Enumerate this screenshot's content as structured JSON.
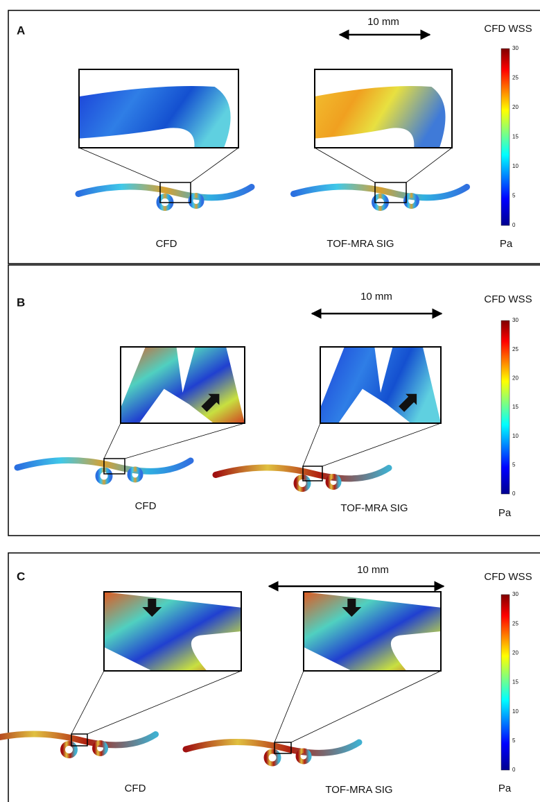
{
  "panels": [
    {
      "label": "A",
      "scale": "10 mm",
      "colorbar": {
        "title": "CFD WSS",
        "ticks": [
          0,
          5,
          10,
          15,
          20,
          25,
          30
        ],
        "unit": "Pa"
      },
      "captions": [
        "CFD",
        "TOF-MRA SIG"
      ]
    },
    {
      "label": "B",
      "scale": "10 mm",
      "colorbar": {
        "title": "CFD WSS",
        "ticks": [
          0,
          5,
          10,
          15,
          20,
          25,
          30
        ],
        "unit": "Pa"
      },
      "captions": [
        "CFD",
        "TOF-MRA SIG"
      ]
    },
    {
      "label": "C",
      "scale": "10 mm",
      "colorbar": {
        "title": "CFD WSS",
        "ticks": [
          0,
          5,
          10,
          15,
          20,
          25,
          30
        ],
        "unit": "Pa"
      },
      "captions": [
        "CFD",
        "TOF-MRA SIG"
      ]
    }
  ]
}
